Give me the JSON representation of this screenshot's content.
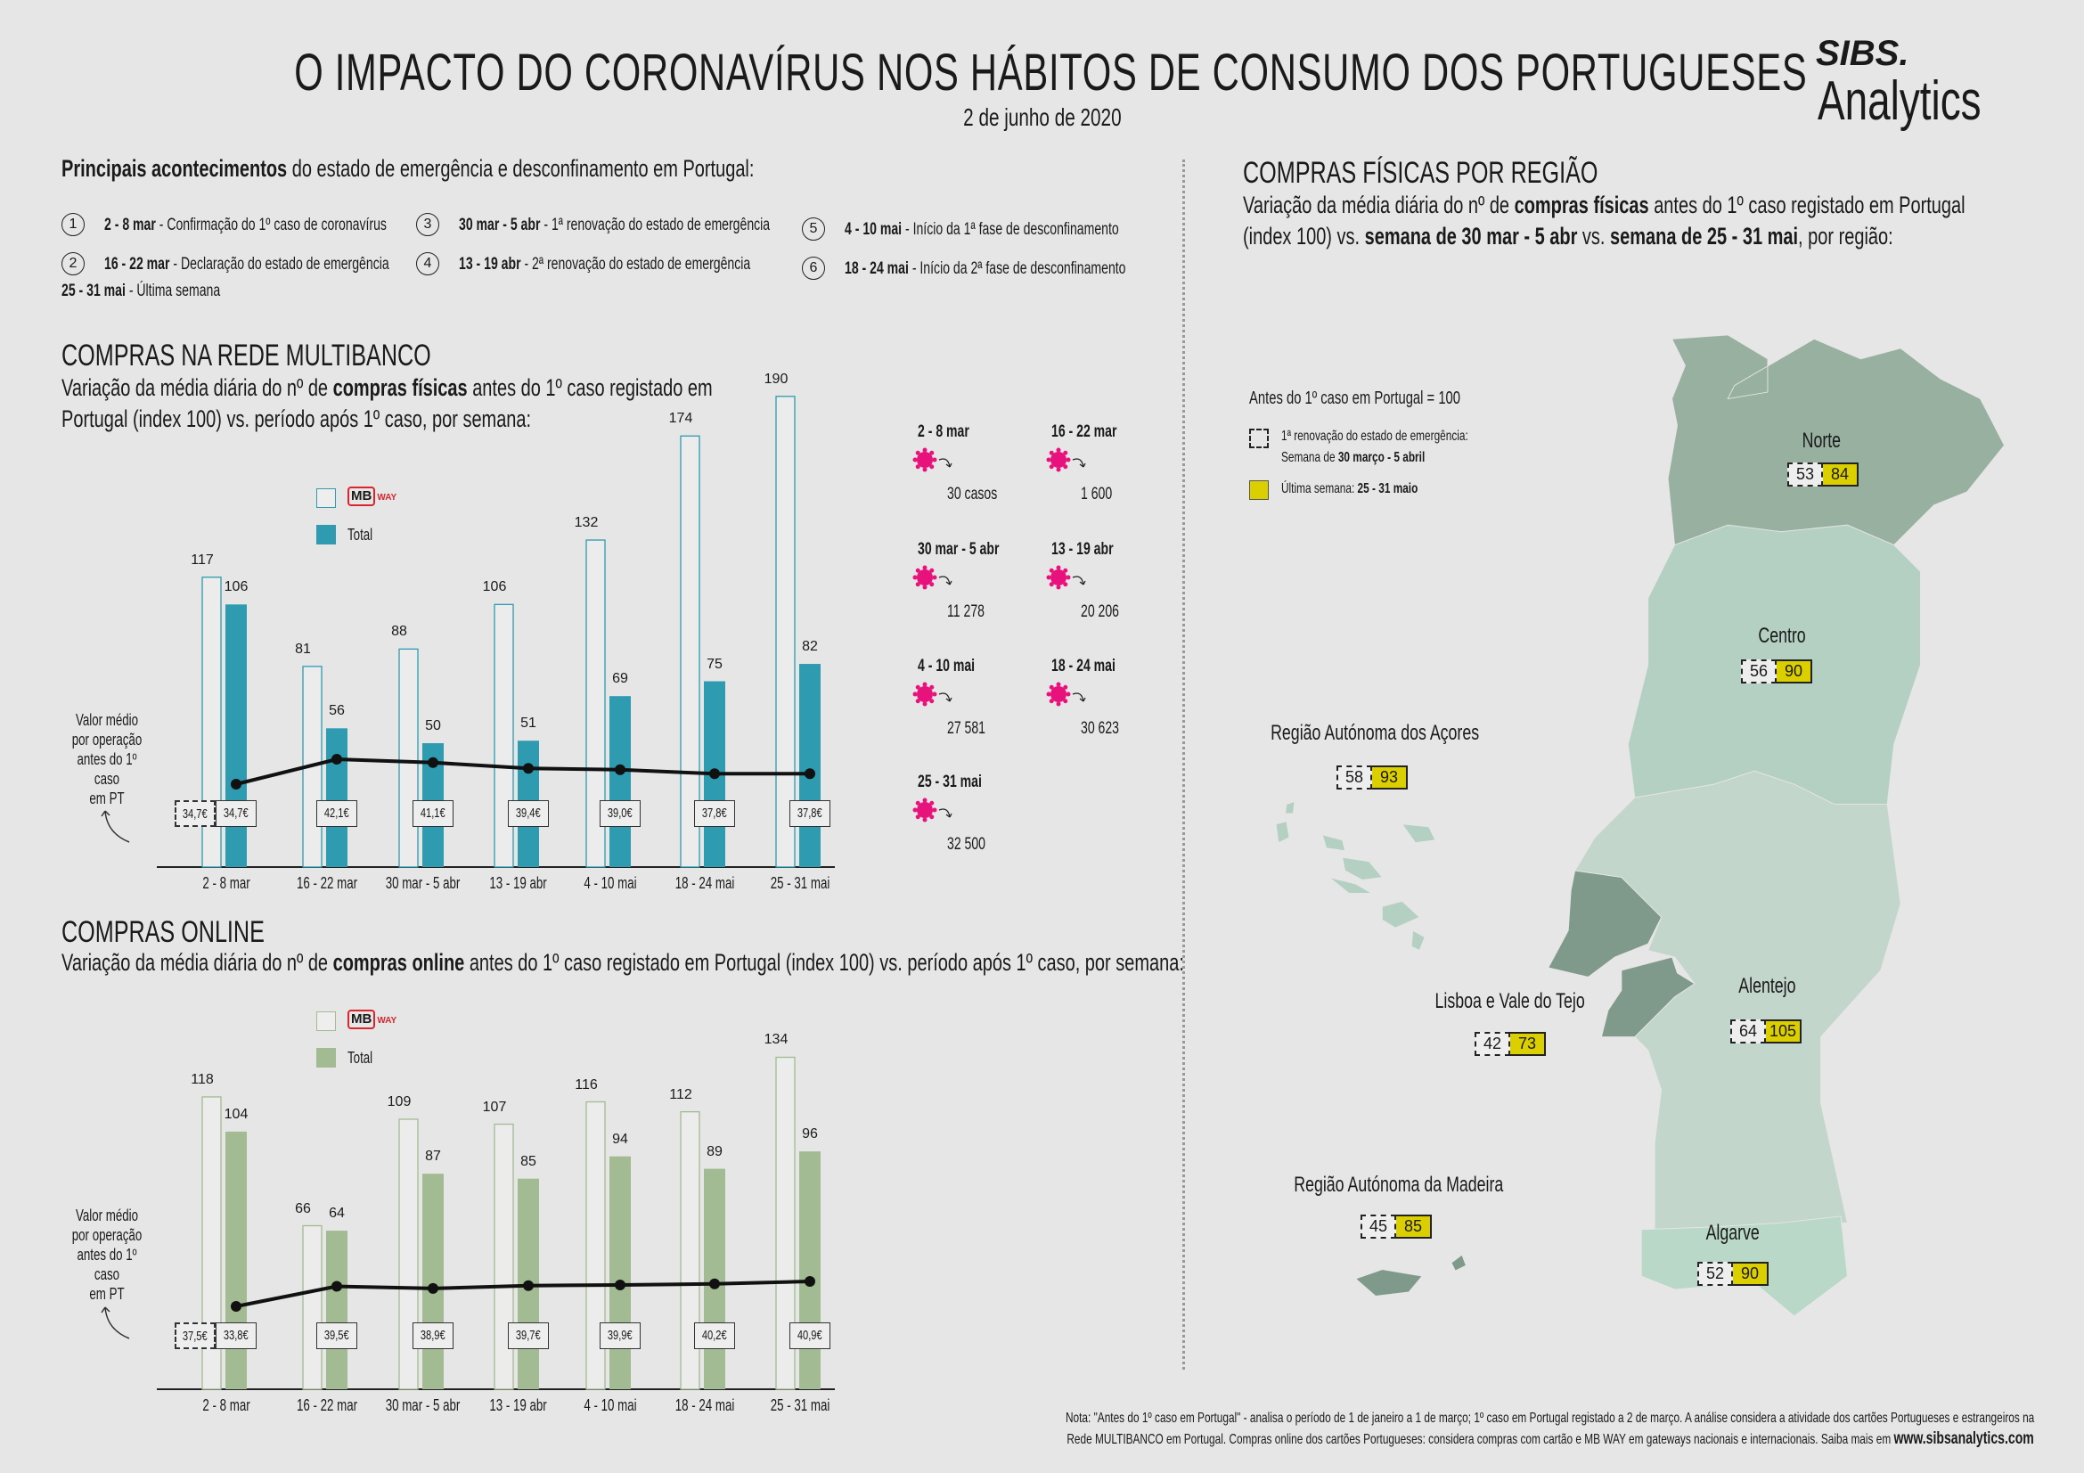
{
  "header": {
    "title": "O IMPACTO DO CORONAVÍRUS NOS HÁBITOS DE CONSUMO DOS PORTUGUESES",
    "date": "2 de junho de 2020",
    "logo_top": "SIBS.",
    "logo_bottom": "Analytics"
  },
  "events": {
    "heading_bold": "Principais acontecimentos",
    "heading_rest": " do estado de emergência e desconfinamento em Portugal:",
    "items": [
      {
        "num": "1",
        "date": "2 - 8 mar",
        "text": " - Confirmação do 1º caso de coronavírus"
      },
      {
        "num": "2",
        "date": "16 - 22 mar",
        "text": " - Declaração do estado de emergência"
      },
      {
        "num": "3",
        "date": "30 mar - 5 abr",
        "text": " - 1ª renovação do estado de emergência"
      },
      {
        "num": "4",
        "date": "13 - 19 abr",
        "text": " - 2ª renovação do estado de emergência"
      },
      {
        "num": "5",
        "date": "4 - 10 mai",
        "text": " - Início da 1ª fase de desconfinamento"
      },
      {
        "num": "6",
        "date": "18 - 24 mai",
        "text": " - Início da 2ª fase de desconfinamento"
      }
    ],
    "last_date": "25 - 31 mai",
    "last_text": " - Última semana"
  },
  "multibanco": {
    "title": "COMPRAS NA REDE MULTIBANCO",
    "sub1a": "Variação da média diária do nº de ",
    "sub1b": "compras físicas",
    "sub1c": " antes do 1º caso registado em",
    "sub2": "Portugal (index 100) vs. período após 1º caso, por semana:",
    "legend_mbway_logo": "MB",
    "legend_mbway_way": "WAY",
    "legend_total": "Total",
    "side_note": [
      "Valor médio",
      "por operação",
      "antes do 1º caso",
      "em PT"
    ]
  },
  "online": {
    "title": "COMPRAS ONLINE",
    "sub_a": "Variação da média diária do nº de ",
    "sub_b": "compras online",
    "sub_c": " antes do 1º caso registado em Portugal (index 100) vs. período após 1º caso, por semana:",
    "legend_mbway_logo": "MB",
    "legend_mbway_way": "WAY",
    "legend_total": "Total",
    "side_note": [
      "Valor médio",
      "por operação",
      "antes do 1º caso",
      "em PT"
    ]
  },
  "cases": [
    {
      "date": "2 - 8 mar",
      "count": "30 casos"
    },
    {
      "date": "16 - 22 mar",
      "count": "1 600"
    },
    {
      "date": "30 mar - 5 abr",
      "count": "11 278"
    },
    {
      "date": "13 - 19 abr",
      "count": "20 206"
    },
    {
      "date": "4 - 10 mai",
      "count": "27 581"
    },
    {
      "date": "18 - 24 mai",
      "count": "30 623"
    },
    {
      "date": "25 - 31 mai",
      "count": "32 500"
    }
  ],
  "regions": {
    "title": "COMPRAS FÍSICAS POR REGIÃO",
    "sub1a": "Variação da média diária do nº de ",
    "sub1b": "compras físicas",
    "sub1c": " antes do 1º caso registado em Portugal",
    "sub2a": "(index 100) vs. ",
    "sub2b": "semana de 30 mar - 5 abr",
    "sub2c": " vs. ",
    "sub2d": "semana de 25 - 31 mai",
    "sub2e": ", por região:",
    "legend_title": "Antes do 1º caso em Portugal = 100",
    "legend_prev_1": "1ª renovação do estado de emergência:",
    "legend_prev_2a": "Semana de ",
    "legend_prev_2b": "30 março - 5 abril",
    "legend_last_a": "Última semana: ",
    "legend_last_b": "25 - 31 maio",
    "items": [
      {
        "name": "Norte",
        "prev": "53",
        "last": "84"
      },
      {
        "name": "Centro",
        "prev": "56",
        "last": "90"
      },
      {
        "name": "Região Autónoma dos Açores",
        "prev": "58",
        "last": "93"
      },
      {
        "name": "Lisboa e Vale do Tejo",
        "prev": "42",
        "last": "73"
      },
      {
        "name": "Alentejo",
        "prev": "64",
        "last": "105"
      },
      {
        "name": "Região Autónoma da Madeira",
        "prev": "45",
        "last": "85"
      },
      {
        "name": "Algarve",
        "prev": "52",
        "last": "90"
      }
    ],
    "colors": {
      "last_week": "#dccf00"
    }
  },
  "note": {
    "line1": "Nota: \"Antes do 1º caso em Portugal\" - analisa o período de 1 de janeiro a 1 de março; 1º caso em Portugal registado a 2 de março. A análise considera a atividade dos cartões Portugueses e estrangeiros na",
    "line2": "Rede MULTIBANCO em Portugal. Compras online dos cartões Portugueses: considera compras com cartão e MB WAY em gateways nacionais e internacionais. Saiba mais em ",
    "url": "www.sibsanalytics.com"
  },
  "chart_data": [
    {
      "type": "bar",
      "title": "COMPRAS NA REDE MULTIBANCO",
      "categories": [
        "2 - 8 mar",
        "16 - 22 mar",
        "30 mar - 5 abr",
        "13 - 19 abr",
        "4 - 10 mai",
        "18 - 24 mai",
        "25 - 31 mai"
      ],
      "series": [
        {
          "name": "MB WAY",
          "values": [
            117,
            81,
            88,
            106,
            132,
            174,
            190
          ]
        },
        {
          "name": "Total",
          "values": [
            106,
            56,
            50,
            51,
            69,
            75,
            82
          ]
        }
      ],
      "avg_ticket": {
        "pre_covid": "34,7€",
        "labels": [
          "34,7€",
          "42,1€",
          "41,1€",
          "39,4€",
          "39,0€",
          "37,8€",
          "37,8€"
        ],
        "values": [
          34.7,
          42.1,
          41.1,
          39.4,
          39.0,
          37.8,
          37.8
        ]
      },
      "colors": {
        "mbway": "#2e9bb0",
        "total": "#2e9bb0"
      },
      "ylim": [
        0,
        190
      ]
    },
    {
      "type": "bar",
      "title": "COMPRAS ONLINE",
      "categories": [
        "2 - 8 mar",
        "16 - 22 mar",
        "30 mar - 5 abr",
        "13 - 19 abr",
        "4 - 10 mai",
        "18 - 24 mai",
        "25 - 31 mai"
      ],
      "series": [
        {
          "name": "MB WAY",
          "values": [
            118,
            66,
            109,
            107,
            116,
            112,
            134
          ]
        },
        {
          "name": "Total",
          "values": [
            104,
            64,
            87,
            85,
            94,
            89,
            96
          ]
        }
      ],
      "avg_ticket": {
        "pre_covid": "37,5€",
        "labels": [
          "33,8€",
          "39,5€",
          "38,9€",
          "39,7€",
          "39,9€",
          "40,2€",
          "40,9€"
        ],
        "values": [
          33.8,
          39.5,
          38.9,
          39.7,
          39.9,
          40.2,
          40.9
        ]
      },
      "colors": {
        "mbway": "#a3bb92",
        "total": "#a3bb92"
      },
      "ylim": [
        0,
        134
      ]
    }
  ]
}
